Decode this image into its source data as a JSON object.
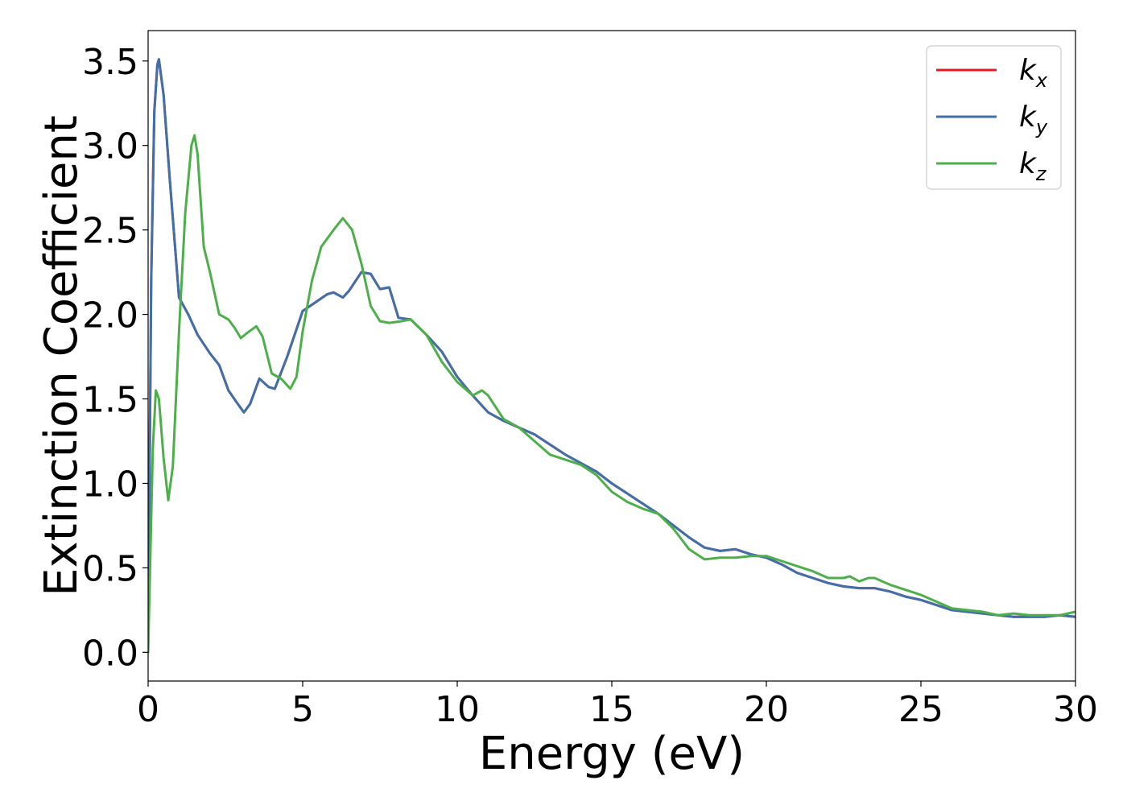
{
  "chart_data": {
    "type": "line",
    "title": "",
    "xlabel": "Energy (eV)",
    "ylabel": "Extinction Coefficient",
    "xlim": [
      0,
      30
    ],
    "ylim": [
      -0.17,
      3.68
    ],
    "xticks": [
      0,
      5,
      10,
      15,
      20,
      25,
      30
    ],
    "xtick_labels": [
      "0",
      "5",
      "10",
      "15",
      "20",
      "25",
      "30"
    ],
    "yticks": [
      0.0,
      0.5,
      1.0,
      1.5,
      2.0,
      2.5,
      3.0,
      3.5
    ],
    "ytick_labels": [
      "0.0",
      "0.5",
      "1.0",
      "1.5",
      "2.0",
      "2.5",
      "3.0",
      "3.5"
    ],
    "grid": false,
    "legend_position": "top-right",
    "series": [
      {
        "name": "k_x",
        "legend_base": "k",
        "legend_sub": "x",
        "color": "#e41a1c",
        "x": [
          0,
          0.1,
          0.2,
          0.3,
          0.35,
          0.5,
          0.7,
          1.0,
          1.3,
          1.6,
          2.0,
          2.3,
          2.6,
          2.9,
          3.1,
          3.3,
          3.6,
          3.9,
          4.1,
          4.5,
          5.0,
          5.4,
          5.8,
          6.0,
          6.3,
          6.5,
          6.9,
          7.2,
          7.5,
          7.8,
          8.1,
          8.5,
          9.0,
          9.5,
          10.0,
          10.5,
          11.0,
          11.5,
          12.0,
          12.5,
          13.0,
          13.5,
          14.0,
          14.5,
          15.0,
          15.5,
          16.0,
          16.5,
          17.0,
          17.5,
          18.0,
          18.5,
          19.0,
          19.5,
          20.0,
          20.5,
          21.0,
          21.5,
          22.0,
          22.5,
          23.0,
          23.5,
          24.0,
          24.5,
          25.0,
          25.5,
          26.0,
          26.5,
          27.0,
          27.5,
          28.0,
          28.5,
          29.0,
          29.5,
          30.0
        ],
        "y": [
          0.0,
          2.2,
          3.2,
          3.48,
          3.51,
          3.3,
          2.8,
          2.1,
          2.0,
          1.88,
          1.77,
          1.7,
          1.55,
          1.47,
          1.42,
          1.47,
          1.62,
          1.57,
          1.56,
          1.75,
          2.02,
          2.07,
          2.12,
          2.13,
          2.1,
          2.14,
          2.25,
          2.24,
          2.15,
          2.16,
          1.98,
          1.97,
          1.88,
          1.78,
          1.63,
          1.52,
          1.42,
          1.37,
          1.33,
          1.29,
          1.23,
          1.17,
          1.12,
          1.07,
          1.0,
          0.94,
          0.88,
          0.82,
          0.75,
          0.68,
          0.62,
          0.6,
          0.61,
          0.58,
          0.56,
          0.52,
          0.47,
          0.44,
          0.41,
          0.39,
          0.38,
          0.38,
          0.36,
          0.33,
          0.31,
          0.28,
          0.25,
          0.24,
          0.23,
          0.22,
          0.21,
          0.21,
          0.21,
          0.22,
          0.21
        ]
      },
      {
        "name": "k_y",
        "legend_base": "k",
        "legend_sub": "y",
        "color": "#3f70aa",
        "x": [
          0,
          0.1,
          0.2,
          0.3,
          0.35,
          0.5,
          0.7,
          1.0,
          1.3,
          1.6,
          2.0,
          2.3,
          2.6,
          2.9,
          3.1,
          3.3,
          3.6,
          3.9,
          4.1,
          4.5,
          5.0,
          5.4,
          5.8,
          6.0,
          6.3,
          6.5,
          6.9,
          7.2,
          7.5,
          7.8,
          8.1,
          8.5,
          9.0,
          9.5,
          10.0,
          10.5,
          11.0,
          11.5,
          12.0,
          12.5,
          13.0,
          13.5,
          14.0,
          14.5,
          15.0,
          15.5,
          16.0,
          16.5,
          17.0,
          17.5,
          18.0,
          18.5,
          19.0,
          19.5,
          20.0,
          20.5,
          21.0,
          21.5,
          22.0,
          22.5,
          23.0,
          23.5,
          24.0,
          24.5,
          25.0,
          25.5,
          26.0,
          26.5,
          27.0,
          27.5,
          28.0,
          28.5,
          29.0,
          29.5,
          30.0
        ],
        "y": [
          0.0,
          2.2,
          3.2,
          3.48,
          3.51,
          3.3,
          2.8,
          2.1,
          2.0,
          1.88,
          1.77,
          1.7,
          1.55,
          1.47,
          1.42,
          1.47,
          1.62,
          1.57,
          1.56,
          1.75,
          2.02,
          2.07,
          2.12,
          2.13,
          2.1,
          2.14,
          2.25,
          2.24,
          2.15,
          2.16,
          1.98,
          1.97,
          1.88,
          1.78,
          1.63,
          1.52,
          1.42,
          1.37,
          1.33,
          1.29,
          1.23,
          1.17,
          1.12,
          1.07,
          1.0,
          0.94,
          0.88,
          0.82,
          0.75,
          0.68,
          0.62,
          0.6,
          0.61,
          0.58,
          0.56,
          0.52,
          0.47,
          0.44,
          0.41,
          0.39,
          0.38,
          0.38,
          0.36,
          0.33,
          0.31,
          0.28,
          0.25,
          0.24,
          0.23,
          0.22,
          0.21,
          0.21,
          0.21,
          0.22,
          0.21
        ]
      },
      {
        "name": "k_z",
        "legend_base": "k",
        "legend_sub": "z",
        "color": "#4daf4a",
        "x": [
          0,
          0.15,
          0.25,
          0.35,
          0.5,
          0.65,
          0.8,
          1.0,
          1.2,
          1.4,
          1.5,
          1.6,
          1.8,
          2.0,
          2.3,
          2.6,
          2.8,
          3.0,
          3.2,
          3.5,
          3.7,
          4.0,
          4.3,
          4.6,
          4.8,
          5.0,
          5.3,
          5.6,
          6.0,
          6.3,
          6.6,
          6.9,
          7.2,
          7.5,
          7.8,
          8.2,
          8.5,
          9.0,
          9.5,
          10.0,
          10.5,
          10.8,
          11.0,
          11.5,
          12.0,
          12.5,
          13.0,
          13.5,
          14.0,
          14.5,
          15.0,
          15.5,
          16.0,
          16.5,
          17.0,
          17.5,
          18.0,
          18.5,
          19.0,
          19.5,
          20.0,
          20.5,
          21.0,
          21.5,
          22.0,
          22.5,
          22.7,
          23.0,
          23.3,
          23.5,
          24.0,
          24.5,
          25.0,
          25.5,
          26.0,
          26.5,
          27.0,
          27.5,
          28.0,
          28.5,
          29.0,
          29.5,
          30.0
        ],
        "y": [
          0.0,
          1.2,
          1.55,
          1.5,
          1.15,
          0.9,
          1.1,
          1.9,
          2.6,
          3.0,
          3.06,
          2.95,
          2.4,
          2.25,
          2.0,
          1.97,
          1.92,
          1.86,
          1.89,
          1.93,
          1.87,
          1.65,
          1.62,
          1.56,
          1.63,
          1.9,
          2.2,
          2.4,
          2.5,
          2.57,
          2.5,
          2.3,
          2.05,
          1.96,
          1.95,
          1.96,
          1.97,
          1.88,
          1.72,
          1.6,
          1.52,
          1.55,
          1.52,
          1.38,
          1.33,
          1.25,
          1.17,
          1.14,
          1.11,
          1.05,
          0.95,
          0.89,
          0.85,
          0.82,
          0.73,
          0.61,
          0.55,
          0.56,
          0.56,
          0.57,
          0.57,
          0.54,
          0.51,
          0.48,
          0.44,
          0.44,
          0.45,
          0.42,
          0.44,
          0.44,
          0.4,
          0.37,
          0.34,
          0.3,
          0.26,
          0.25,
          0.24,
          0.22,
          0.23,
          0.22,
          0.22,
          0.22,
          0.24
        ]
      }
    ]
  }
}
